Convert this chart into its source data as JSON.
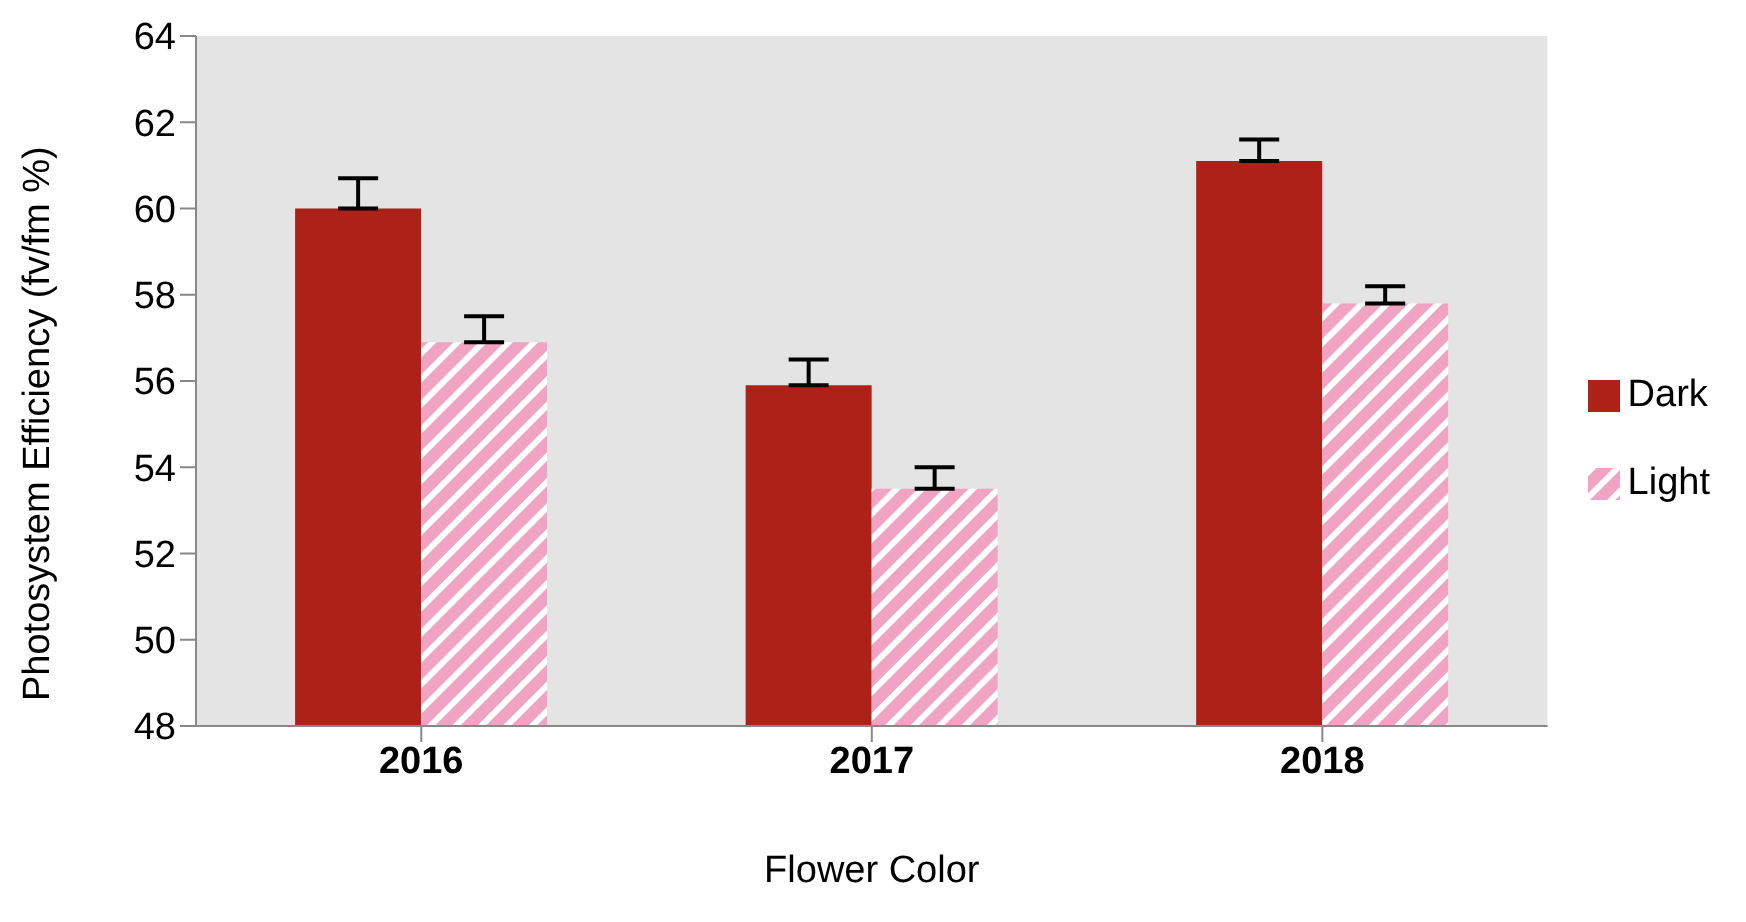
{
  "chart_data": {
    "type": "bar",
    "xlabel": "Flower Color",
    "ylabel": "Photosystem Efficiency (fv/fm %)",
    "categories": [
      "2016",
      "2017",
      "2018"
    ],
    "series": [
      {
        "name": "Dark",
        "color": "#ad2118",
        "values": [
          60.0,
          55.9,
          61.1
        ],
        "errors": [
          [
            60.0,
            60.7
          ],
          [
            55.9,
            56.5
          ],
          [
            61.1,
            61.6
          ]
        ]
      },
      {
        "name": "Light",
        "color": "#f0a3c2",
        "values": [
          56.9,
          53.5,
          57.8
        ],
        "errors": [
          [
            56.9,
            57.5
          ],
          [
            53.5,
            54.0
          ],
          [
            57.8,
            58.2
          ]
        ]
      }
    ],
    "ylim": [
      48,
      64
    ],
    "yticks": [
      48,
      50,
      52,
      54,
      56,
      58,
      60,
      62,
      64
    ],
    "legend": "right"
  }
}
